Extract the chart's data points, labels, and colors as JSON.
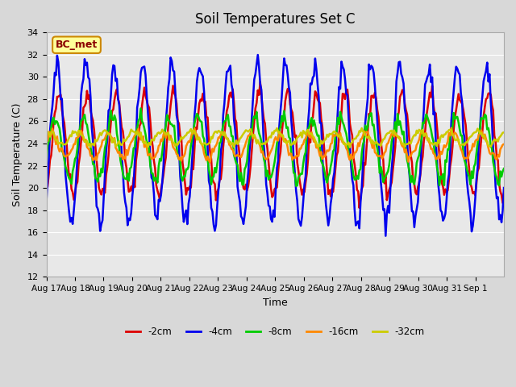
{
  "title": "Soil Temperatures Set C",
  "xlabel": "Time",
  "ylabel": "Soil Temperature (C)",
  "ylim": [
    12,
    34
  ],
  "yticks": [
    12,
    14,
    16,
    18,
    20,
    22,
    24,
    26,
    28,
    30,
    32,
    34
  ],
  "legend_label": "BC_met",
  "legend_bg": "#ffff99",
  "legend_border": "#cc8800",
  "line_colors": {
    "-2cm": "#dd0000",
    "-4cm": "#0000ee",
    "-8cm": "#00cc00",
    "-16cm": "#ff8800",
    "-32cm": "#cccc00"
  },
  "line_widths": {
    "-2cm": 1.8,
    "-4cm": 1.8,
    "-8cm": 1.8,
    "-16cm": 1.8,
    "-32cm": 1.8
  },
  "date_labels": [
    "Aug 17",
    "Aug 18",
    "Aug 19",
    "Aug 20",
    "Aug 21",
    "Aug 22",
    "Aug 23",
    "Aug 24",
    "Aug 25",
    "Aug 26",
    "Aug 27",
    "Aug 28",
    "Aug 29",
    "Aug 30",
    "Aug 31",
    "Sep 1"
  ],
  "n_days": 16,
  "samples_per_day": 24
}
